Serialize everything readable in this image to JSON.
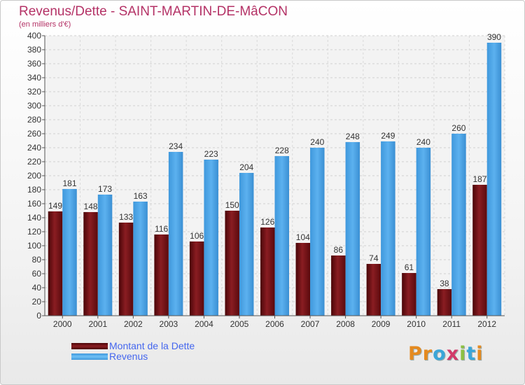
{
  "header": {
    "title": "Revenus/Dette - SAINT-MARTIN-DE-MâCON",
    "subtitle": "(en milliers d'€)"
  },
  "legend": {
    "items": [
      {
        "label": "Montant de la Dette",
        "color": "#6b0d10"
      },
      {
        "label": "Revenus",
        "color": "#4ba3e6"
      }
    ]
  },
  "logo": {
    "letters": [
      "P",
      "r",
      "o",
      "x",
      "i",
      "t",
      "i"
    ],
    "colors": [
      "#e58a1f",
      "#e58a1f",
      "#3aa6d8",
      "#d23a6a",
      "#8cc043",
      "#3aa6d8",
      "#e58a1f"
    ]
  },
  "chart_data": {
    "type": "bar",
    "title": "Revenus/Dette - SAINT-MARTIN-DE-MâCON",
    "subtitle": "(en milliers d'€)",
    "categories": [
      "2000",
      "2001",
      "2002",
      "2003",
      "2004",
      "2005",
      "2006",
      "2007",
      "2008",
      "2009",
      "2010",
      "2011",
      "2012"
    ],
    "series": [
      {
        "name": "Montant de la Dette",
        "color": "#6b0d10",
        "values": [
          149,
          148,
          133,
          116,
          106,
          150,
          126,
          104,
          86,
          74,
          61,
          38,
          187
        ]
      },
      {
        "name": "Revenus",
        "color": "#4ba3e6",
        "values": [
          181,
          173,
          163,
          234,
          223,
          204,
          228,
          240,
          248,
          249,
          240,
          260,
          390
        ]
      }
    ],
    "ylim": [
      0,
      400
    ],
    "ytick_step": 20,
    "grid": true,
    "legend_position": "bottom-left"
  }
}
